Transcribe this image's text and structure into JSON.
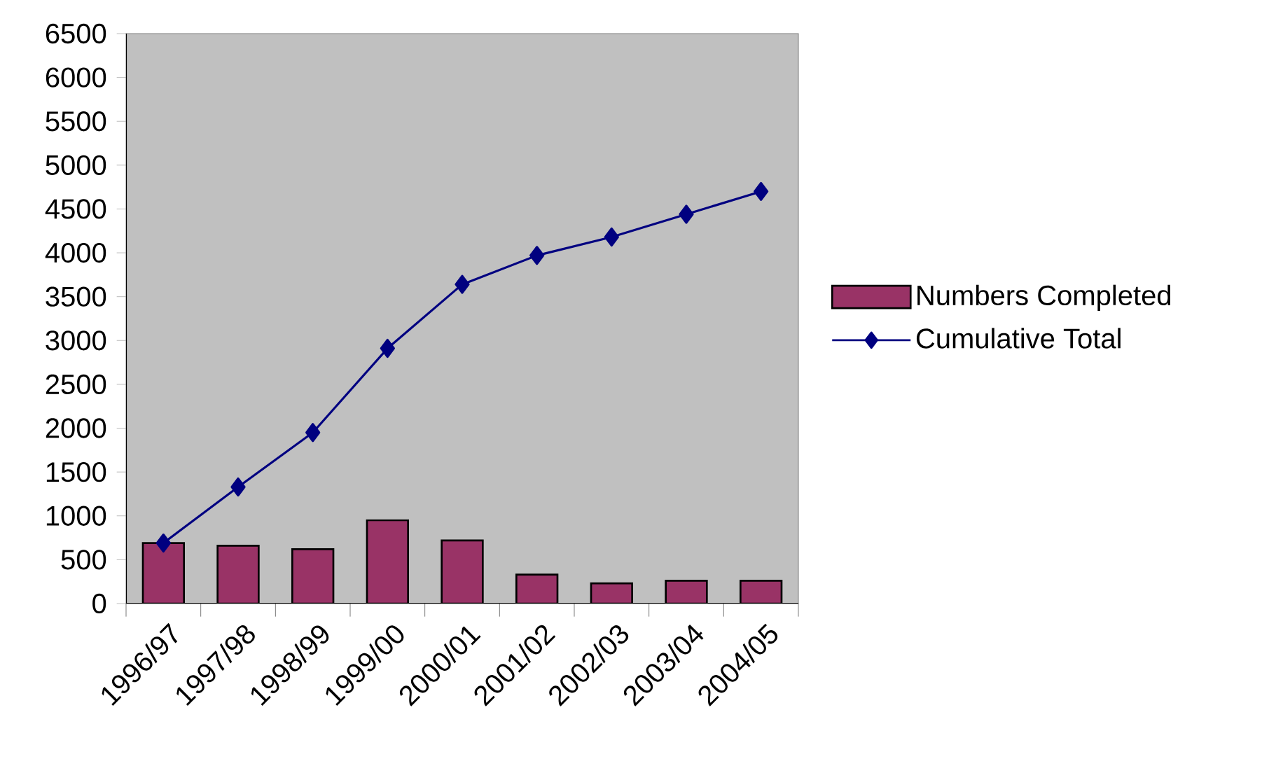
{
  "chart_data": {
    "type": "bar",
    "categories": [
      "1996/97",
      "1997/98",
      "1998/99",
      "1999/00",
      "2000/01",
      "2001/02",
      "2002/03",
      "2003/04",
      "2004/05"
    ],
    "series": [
      {
        "name": "Numbers Completed",
        "color": "#993366",
        "values": [
          690,
          660,
          620,
          950,
          720,
          330,
          230,
          260,
          260
        ]
      },
      {
        "name": "Cumulative Total",
        "type": "line",
        "color": "#000080",
        "marker": "diamond",
        "values": [
          690,
          1330,
          1950,
          2910,
          3640,
          3970,
          4180,
          4440,
          4700
        ]
      }
    ],
    "ylim": [
      0,
      6500
    ],
    "yticks": [
      0,
      500,
      1000,
      1500,
      2000,
      2500,
      3000,
      3500,
      4000,
      4500,
      5000,
      5500,
      6000,
      6500
    ],
    "grid": false,
    "legend": "right"
  }
}
